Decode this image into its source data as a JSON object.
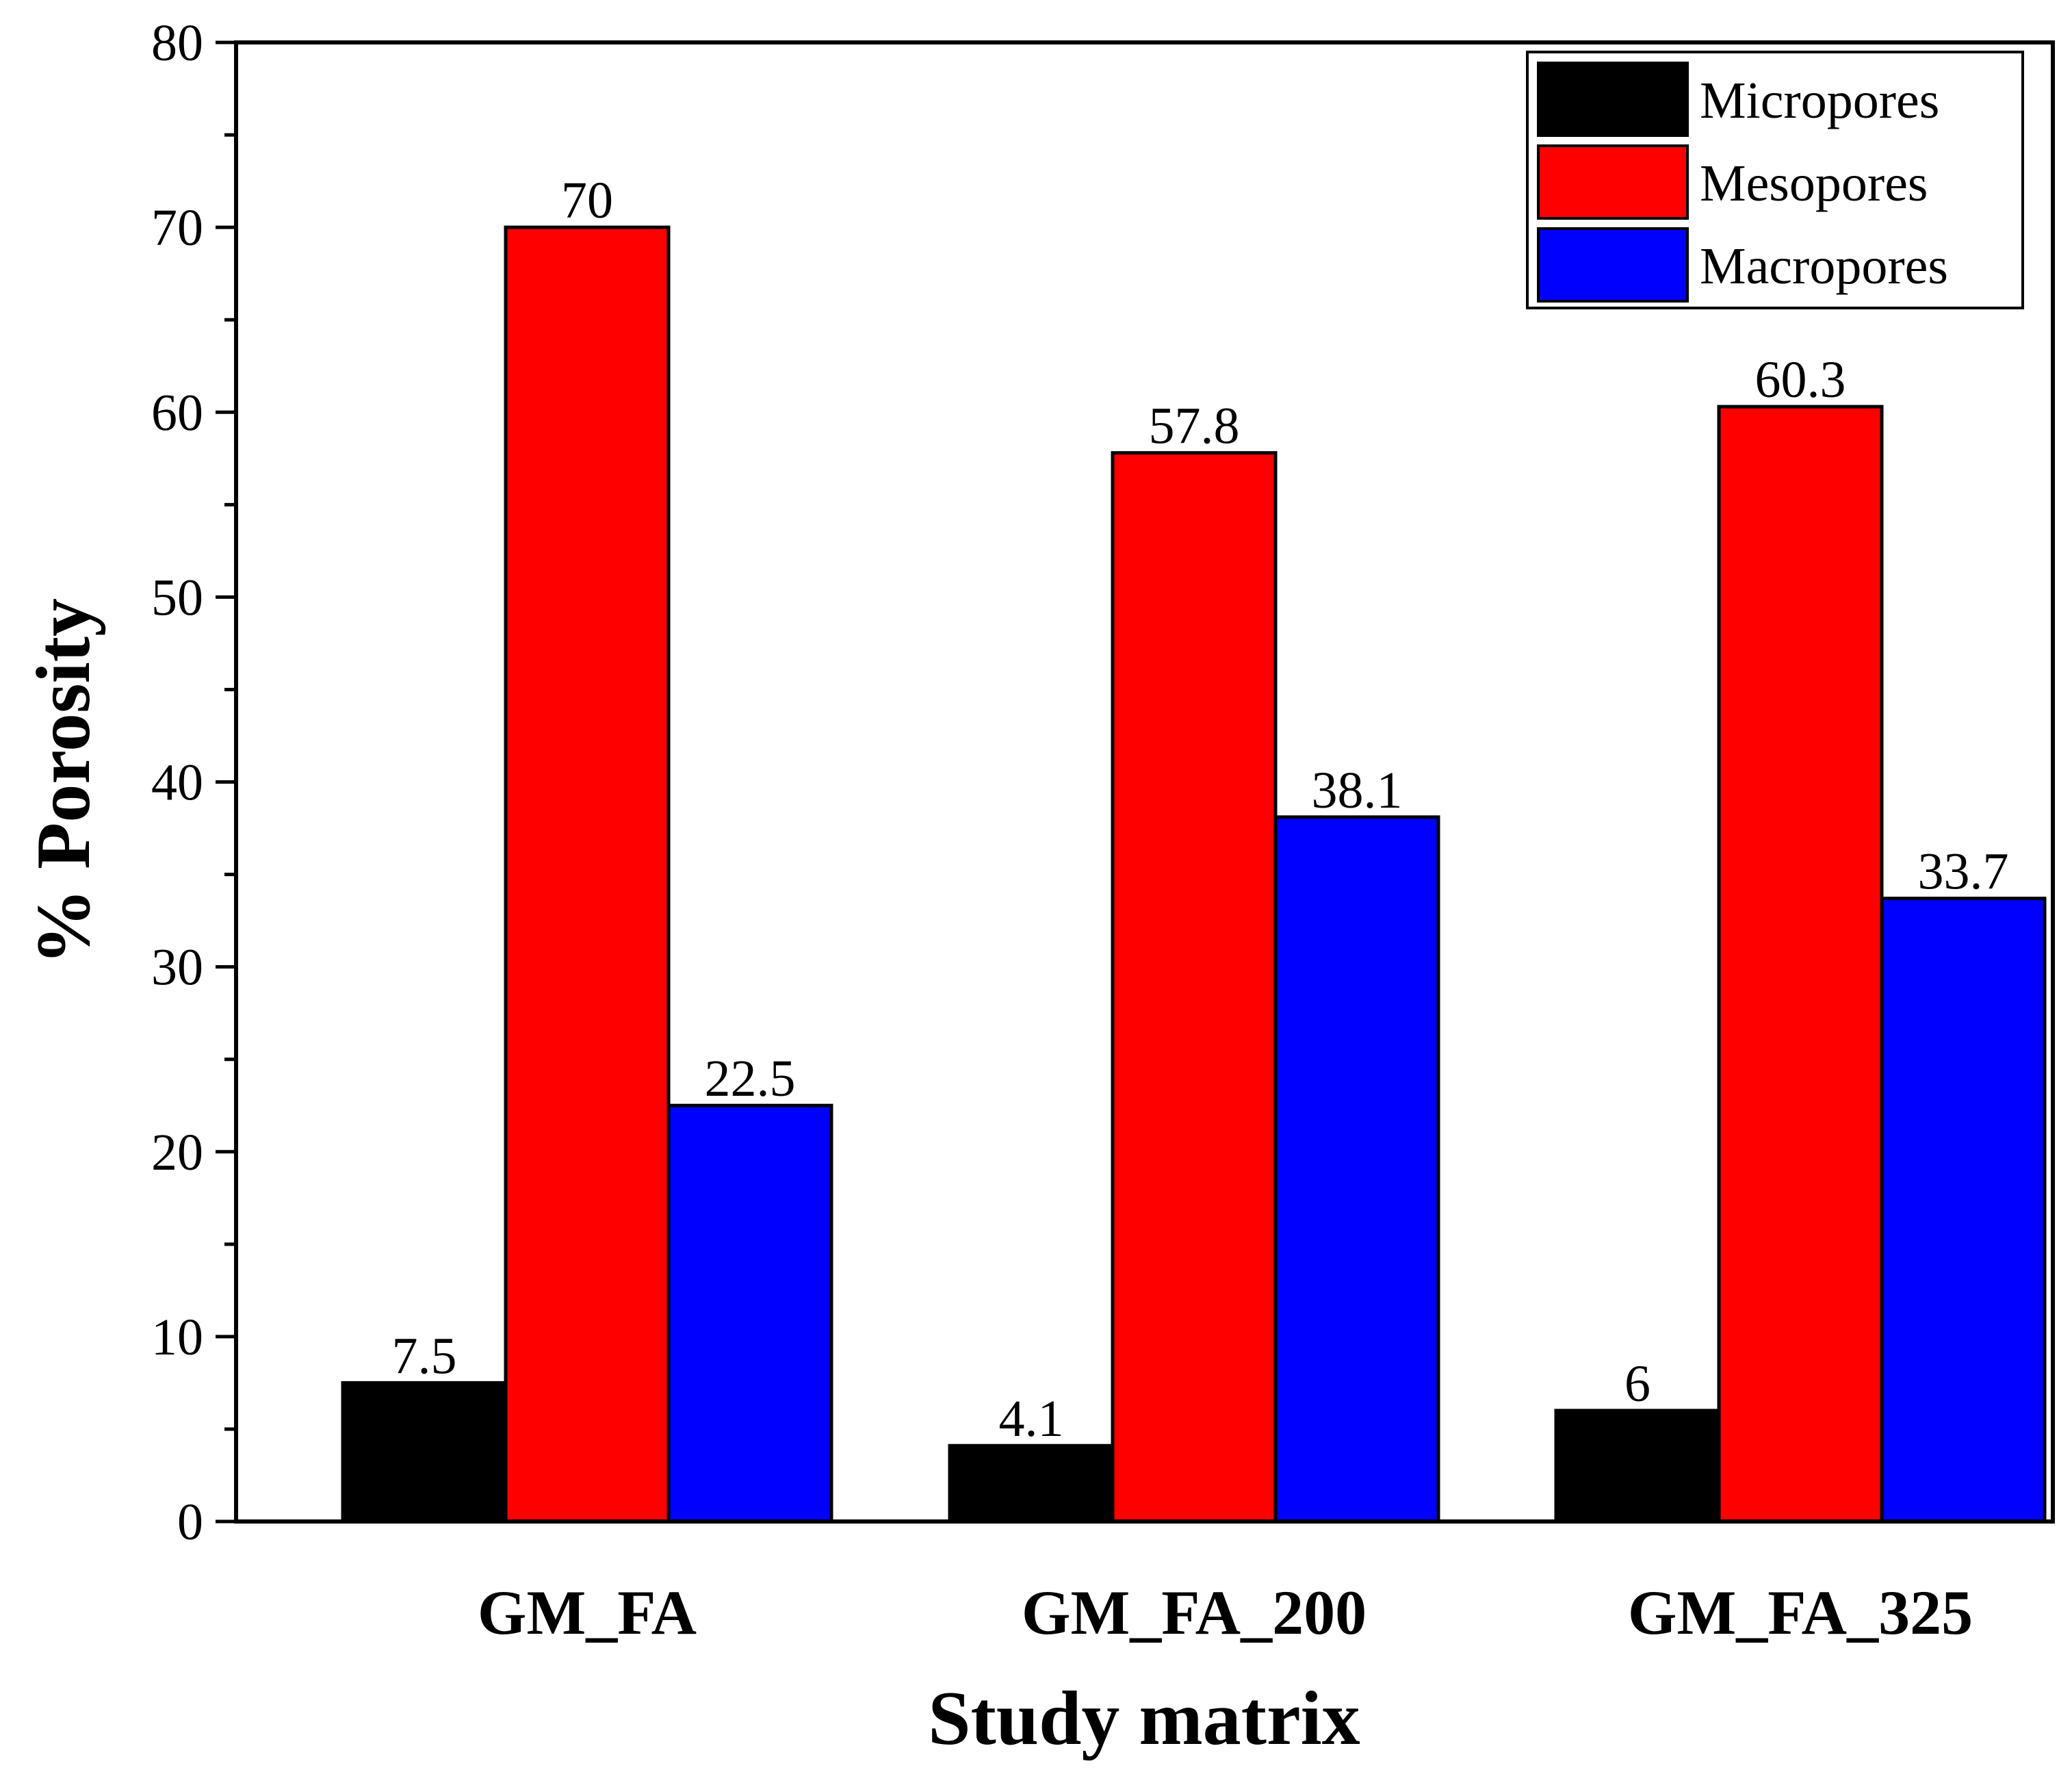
{
  "chart_data": {
    "type": "bar",
    "title": "",
    "xlabel": "Study matrix",
    "ylabel": "% Porosity",
    "ylim": [
      0,
      80
    ],
    "yticks": [
      0,
      10,
      20,
      30,
      40,
      50,
      60,
      70,
      80
    ],
    "categories": [
      "GM_FA",
      "GM_FA_200",
      "GM_FA_325"
    ],
    "series": [
      {
        "name": "Micropores",
        "color": "#000000",
        "values": [
          7.5,
          4.1,
          6
        ],
        "labels": [
          "7.5",
          "4.1",
          "6"
        ]
      },
      {
        "name": "Mesopores",
        "color": "#ff0000",
        "values": [
          70,
          57.8,
          60.3
        ],
        "labels": [
          "70",
          "57.8",
          "60.3"
        ]
      },
      {
        "name": "Macropores",
        "color": "#0000ff",
        "values": [
          22.5,
          38.1,
          33.7
        ],
        "labels": [
          "22.5",
          "38.1",
          "33.7"
        ]
      }
    ],
    "legend_position": "top-right",
    "grid": false
  }
}
